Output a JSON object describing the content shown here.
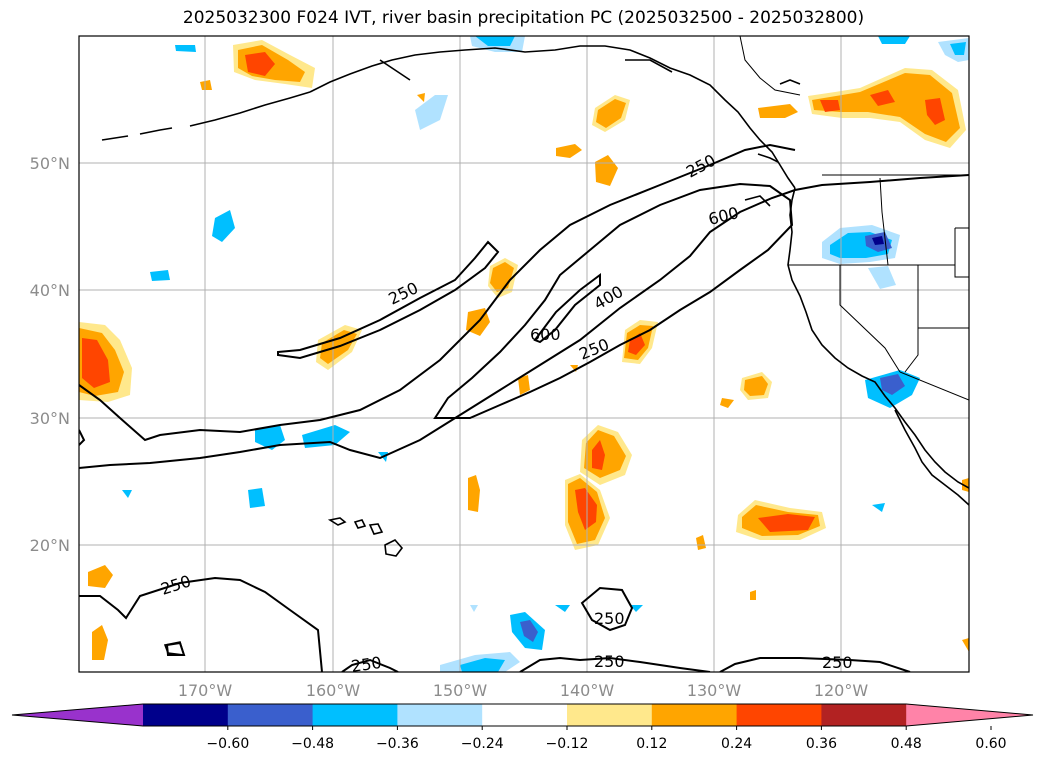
{
  "title": "2025032300 F024 IVT, river basin precipitation PC (2025032500 - 2025032800)",
  "lat_labels": [
    "50°N",
    "40°N",
    "30°N",
    "20°N"
  ],
  "lon_labels": [
    "170°W",
    "160°W",
    "150°W",
    "140°W",
    "130°W",
    "120°W"
  ],
  "contour_labels": [
    "250",
    "600",
    "400",
    "600",
    "250",
    "250",
    "250",
    "250",
    "250",
    "250",
    "250"
  ],
  "colorbar": {
    "ticks": [
      "−0.60",
      "−0.48",
      "−0.36",
      "−0.24",
      "−0.12",
      "0.12",
      "0.24",
      "0.36",
      "0.48",
      "0.60"
    ],
    "colors": [
      "#9932cc",
      "#00008b",
      "#3a5fcd",
      "#00bfff",
      "#b0e2ff",
      "#ffffff",
      "#ffe88c",
      "#ffa500",
      "#ff4500",
      "#b22222",
      "#ff83a8"
    ]
  }
}
